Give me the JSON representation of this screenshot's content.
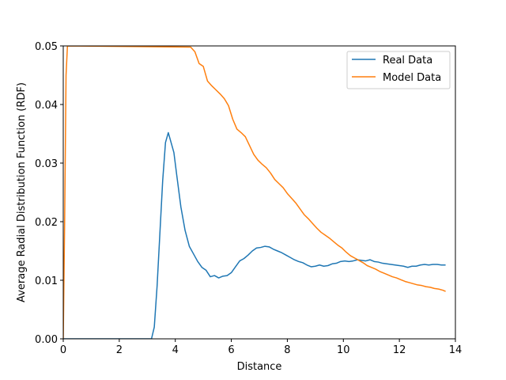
{
  "chart_data": {
    "type": "line",
    "xlabel": "Distance",
    "ylabel": "Average Radial Distribution Function (RDF)",
    "xlim": [
      0,
      14
    ],
    "ylim": [
      0,
      0.05
    ],
    "xticks": [
      "0",
      "2",
      "4",
      "6",
      "8",
      "10",
      "12",
      "14"
    ],
    "yticks": [
      "0.00",
      "0.01",
      "0.02",
      "0.03",
      "0.04",
      "0.05"
    ],
    "grid": false,
    "legend_position": "top-right",
    "series": [
      {
        "name": "Real Data",
        "color": "#1f77b4",
        "x": [
          0,
          3.0,
          3.15,
          3.25,
          3.35,
          3.45,
          3.55,
          3.65,
          3.75,
          3.85,
          3.95,
          4.05,
          4.2,
          4.35,
          4.5,
          4.65,
          4.8,
          4.95,
          5.1,
          5.25,
          5.4,
          5.55,
          5.7,
          5.85,
          6.0,
          6.15,
          6.3,
          6.45,
          6.6,
          6.75,
          6.9,
          7.05,
          7.2,
          7.35,
          7.5,
          7.65,
          7.8,
          7.95,
          8.1,
          8.25,
          8.4,
          8.55,
          8.7,
          8.85,
          9.0,
          9.15,
          9.3,
          9.45,
          9.6,
          9.75,
          9.9,
          10.05,
          10.2,
          10.35,
          10.5,
          10.65,
          10.8,
          10.95,
          11.1,
          11.25,
          11.4,
          11.55,
          11.7,
          11.85,
          12.0,
          12.15,
          12.3,
          12.45,
          12.6,
          12.75,
          12.9,
          13.05,
          13.2,
          13.35,
          13.5,
          13.65
        ],
        "y": [
          0,
          0,
          0,
          0.002,
          0.009,
          0.018,
          0.027,
          0.0335,
          0.0352,
          0.0335,
          0.0318,
          0.028,
          0.0225,
          0.0185,
          0.0158,
          0.0145,
          0.0132,
          0.0122,
          0.0117,
          0.0106,
          0.0108,
          0.0104,
          0.0107,
          0.0108,
          0.0113,
          0.0123,
          0.0133,
          0.0137,
          0.0143,
          0.015,
          0.0155,
          0.0156,
          0.0158,
          0.0157,
          0.0153,
          0.015,
          0.0147,
          0.0143,
          0.0139,
          0.0135,
          0.0132,
          0.013,
          0.0126,
          0.0123,
          0.0124,
          0.0126,
          0.0124,
          0.0125,
          0.0128,
          0.0129,
          0.0132,
          0.0133,
          0.0132,
          0.0133,
          0.0135,
          0.0134,
          0.0133,
          0.0135,
          0.0132,
          0.0131,
          0.0129,
          0.0128,
          0.0127,
          0.0126,
          0.0125,
          0.0124,
          0.0122,
          0.0124,
          0.0124,
          0.0126,
          0.0127,
          0.0126,
          0.0127,
          0.0127,
          0.0126,
          0.0126
        ]
      },
      {
        "name": "Model Data",
        "color": "#ff7f0e",
        "x": [
          0,
          0.05,
          0.1,
          0.15,
          4.55,
          4.7,
          4.85,
          5.0,
          5.15,
          5.3,
          5.45,
          5.6,
          5.75,
          5.9,
          6.05,
          6.2,
          6.35,
          6.5,
          6.65,
          6.8,
          6.95,
          7.1,
          7.25,
          7.4,
          7.55,
          7.7,
          7.85,
          8.0,
          8.15,
          8.3,
          8.45,
          8.6,
          8.75,
          8.9,
          9.05,
          9.2,
          9.35,
          9.5,
          9.65,
          9.8,
          9.95,
          10.1,
          10.25,
          10.4,
          10.55,
          10.7,
          10.85,
          11.0,
          11.15,
          11.3,
          11.45,
          11.6,
          11.75,
          11.9,
          12.05,
          12.2,
          12.35,
          12.5,
          12.65,
          12.8,
          12.95,
          13.1,
          13.25,
          13.4,
          13.55,
          13.65
        ],
        "y": [
          0.0,
          0.02,
          0.045,
          0.05,
          0.0498,
          0.049,
          0.047,
          0.0465,
          0.044,
          0.0432,
          0.0425,
          0.0418,
          0.041,
          0.0398,
          0.0375,
          0.0358,
          0.0352,
          0.0345,
          0.033,
          0.0315,
          0.0305,
          0.0298,
          0.0292,
          0.0283,
          0.0272,
          0.0265,
          0.0258,
          0.0248,
          0.024,
          0.0232,
          0.0222,
          0.0212,
          0.0205,
          0.0197,
          0.0189,
          0.0182,
          0.0177,
          0.0172,
          0.0166,
          0.016,
          0.0155,
          0.0148,
          0.0142,
          0.0138,
          0.0134,
          0.013,
          0.0125,
          0.0122,
          0.0119,
          0.0115,
          0.0112,
          0.0109,
          0.0106,
          0.0104,
          0.0101,
          0.0098,
          0.0096,
          0.0094,
          0.0092,
          0.0091,
          0.0089,
          0.0088,
          0.0086,
          0.0085,
          0.0083,
          0.0081
        ]
      }
    ]
  }
}
